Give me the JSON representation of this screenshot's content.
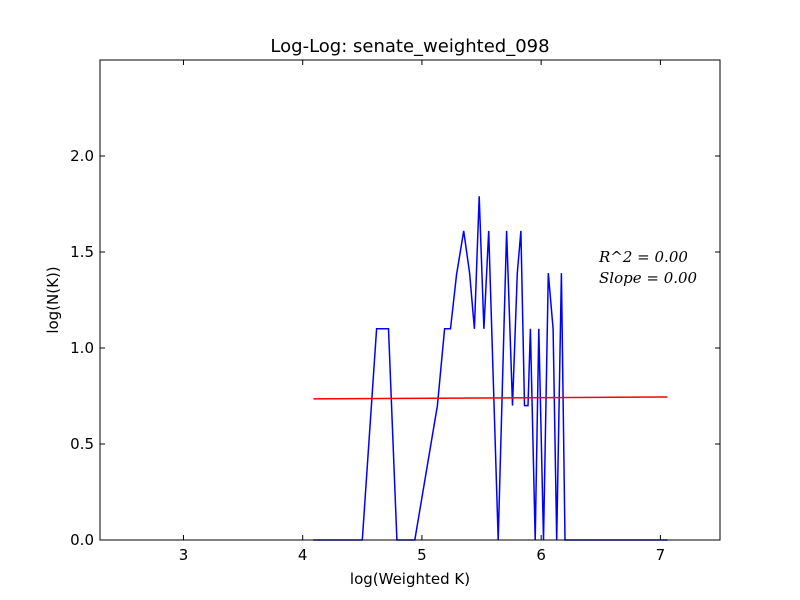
{
  "chart_data": {
    "type": "line",
    "title": "Log-Log: senate_weighted_098",
    "xlabel": "log(Weighted K)",
    "ylabel": "log(N(K))",
    "xlim": [
      2.3,
      7.5
    ],
    "ylim": [
      0.0,
      2.5
    ],
    "xticks": [
      3,
      4,
      5,
      6,
      7
    ],
    "xtick_labels": [
      "3",
      "4",
      "5",
      "6",
      "7"
    ],
    "yticks": [
      0.0,
      0.5,
      1.0,
      1.5,
      2.0
    ],
    "ytick_labels": [
      "0.0",
      "0.5",
      "1.0",
      "1.5",
      "2.0"
    ],
    "grid": false,
    "series": [
      {
        "color": "#0000ff",
        "x": [
          4.09,
          4.5,
          4.62,
          4.72,
          4.79,
          4.94,
          5.13,
          5.19,
          5.24,
          5.29,
          5.35,
          5.4,
          5.44,
          5.48,
          5.52,
          5.56,
          5.64,
          5.71,
          5.76,
          5.8,
          5.83,
          5.86,
          5.89,
          5.91,
          5.95,
          5.98,
          6.02,
          6.06,
          6.1,
          6.13,
          6.17,
          6.2,
          6.24,
          7.06
        ],
        "y": [
          0.0,
          0.0,
          1.1,
          1.1,
          0.0,
          0.0,
          0.7,
          1.1,
          1.1,
          1.38,
          1.61,
          1.39,
          1.1,
          1.79,
          1.1,
          1.61,
          0.0,
          1.61,
          0.7,
          1.39,
          1.61,
          0.7,
          0.7,
          1.1,
          0.0,
          1.1,
          0.0,
          1.39,
          1.1,
          0.0,
          1.39,
          0.0,
          0.0,
          0.0
        ]
      },
      {
        "color": "#ff0000",
        "x": [
          4.09,
          7.06
        ],
        "y": [
          0.735,
          0.745
        ]
      }
    ],
    "annotations": [
      "R^2 = 0.00",
      "Slope = 0.00"
    ]
  }
}
